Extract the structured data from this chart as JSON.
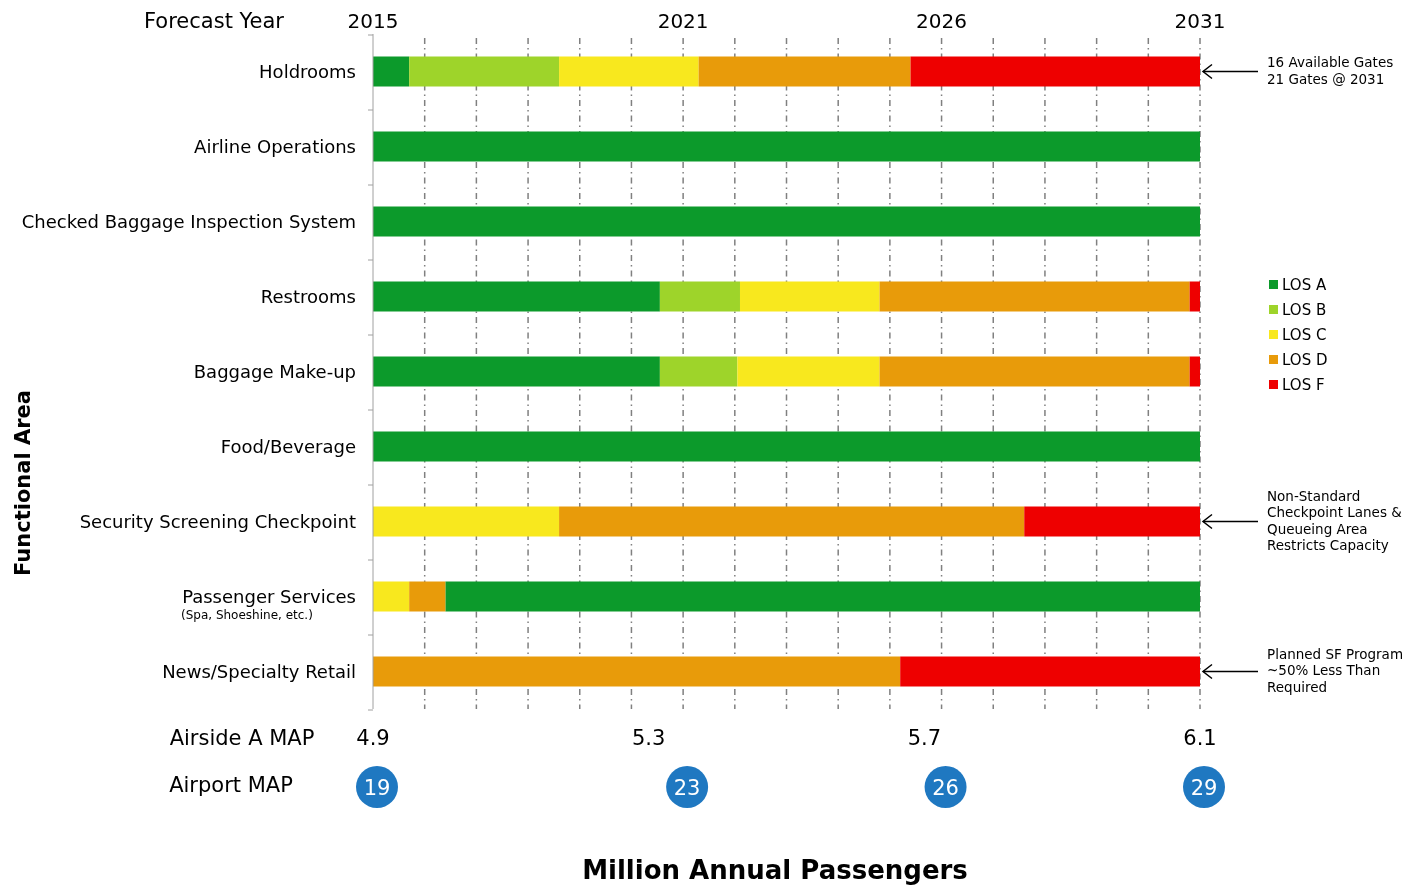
{
  "chart_data": {
    "type": "bar",
    "orientation": "horizontal",
    "categories": [
      "Holdrooms",
      "Airline Operations",
      "Checked Baggage Inspection System",
      "Restrooms",
      "Baggage Make-up",
      "Food/Beverage",
      "Security Screening Checkpoint",
      "Passenger Services\n$_{(Spa, Shoeshine, etc.)}$",
      "News/Specialty Retail"
    ],
    "series": [
      {
        "name": "LOS A",
        "color": "#0c9a2b",
        "base": [
          2015,
          2015,
          2015,
          2015,
          2015,
          2015,
          null,
          2016.4,
          null
        ],
        "values": [
          0.7,
          16,
          16,
          5.55,
          5.55,
          16,
          null,
          14.6,
          null
        ]
      },
      {
        "name": "LOS B",
        "color": "#9ed42a",
        "base": [
          2015.7,
          null,
          null,
          2020.55,
          2020.55,
          null,
          null,
          null,
          null
        ],
        "values": [
          2.9,
          null,
          null,
          1.55,
          1.5,
          null,
          null,
          null,
          null
        ]
      },
      {
        "name": "LOS C",
        "color": "#f8e81e",
        "base": [
          2018.6,
          null,
          null,
          2022.1,
          2022.05,
          null,
          2015,
          2015,
          null
        ],
        "values": [
          2.7,
          null,
          null,
          2.7,
          2.75,
          null,
          3.6,
          0.7,
          null
        ]
      },
      {
        "name": "LOS D",
        "color": "#e89b0a",
        "base": [
          2021.3,
          null,
          null,
          2024.8,
          2024.8,
          null,
          2018.6,
          2015.7,
          2015
        ],
        "values": [
          4.1,
          null,
          null,
          6.0,
          6.0,
          null,
          9.0,
          0.7,
          10.2
        ]
      },
      {
        "name": "LOS F",
        "color": "#ee0000",
        "base": [
          2025.4,
          null,
          null,
          2030.8,
          2030.8,
          null,
          2027.6,
          null,
          2025.2
        ],
        "values": [
          5.6,
          null,
          null,
          0.2,
          0.2,
          null,
          3.4,
          null,
          5.8
        ]
      }
    ],
    "xlim": [
      2015,
      2031
    ],
    "xticks": [
      2015,
      {
        "value": 2016,
        "label": null
      },
      {
        "value": 2017,
        "label": null
      },
      {
        "value": 2018,
        "label": null
      },
      {
        "value": 2019,
        "label": null
      },
      {
        "value": 2020,
        "label": null
      },
      2021,
      {
        "value": 2022,
        "label": null
      },
      {
        "value": 2023,
        "label": null
      },
      {
        "value": 2024,
        "label": null
      },
      {
        "value": 2025,
        "label": null
      },
      2026,
      {
        "value": 2027,
        "label": null
      },
      {
        "value": 2028,
        "label": null
      },
      {
        "value": 2029,
        "label": null
      },
      {
        "value": 2030,
        "label": null
      },
      2031
    ],
    "xlabel": "Forecast Year",
    "x2lim": [
      4.9,
      6.1
    ],
    "x2ticks": [
      4.9,
      5.3,
      5.7,
      6.1
    ],
    "x2label": "Airside A MAP",
    "ylabel": "Functional Area",
    "grid": "x",
    "legend": "right",
    "annotations": [
      "16 Available Gates\n21 Gates @ 2031",
      "Non-Standard\nCheckpoint Lanes &\nQueueing Area\nRestricts Capacity",
      "Planned SF Program\n~50% Less Than\nRequired",
      "Airport MAP",
      "19",
      "23",
      "26",
      "29",
      "Million Annual Passengers"
    ]
  }
}
